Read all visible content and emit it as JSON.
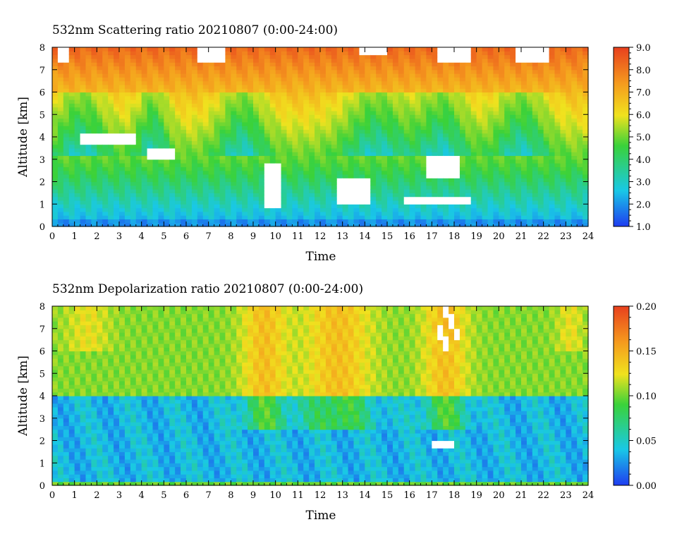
{
  "chart_data": [
    {
      "type": "heatmap",
      "title": "532nm Scattering ratio  20210807 (0:00-24:00)",
      "xlabel": "Time",
      "ylabel": "Altitude [km]",
      "xlim": [
        0,
        24
      ],
      "ylim": [
        0,
        8
      ],
      "x_ticks": [
        "0",
        "1",
        "2",
        "3",
        "4",
        "5",
        "6",
        "7",
        "8",
        "9",
        "10",
        "11",
        "12",
        "13",
        "14",
        "15",
        "16",
        "17",
        "18",
        "19",
        "20",
        "21",
        "22",
        "23",
        "24"
      ],
      "y_ticks": [
        "0",
        "1",
        "2",
        "3",
        "4",
        "5",
        "6",
        "7",
        "8"
      ],
      "colorbar": {
        "min": 1.0,
        "max": 9.0,
        "ticks": [
          "1.0",
          "2.0",
          "3.0",
          "4.0",
          "5.0",
          "6.0",
          "7.0",
          "8.0",
          "9.0"
        ]
      },
      "colormap": [
        "#1f3cf0",
        "#19c8e6",
        "#3ad23a",
        "#f0e21e",
        "#f59a1e",
        "#e8401e"
      ],
      "cloud_regions_white": true
    },
    {
      "type": "heatmap",
      "title": "532nm Depolarization ratio  20210807 (0:00-24:00)",
      "xlabel": "Time",
      "ylabel": "Altitude [km]",
      "xlim": [
        0,
        24
      ],
      "ylim": [
        0,
        8
      ],
      "x_ticks": [
        "0",
        "1",
        "2",
        "3",
        "4",
        "5",
        "6",
        "7",
        "8",
        "9",
        "10",
        "11",
        "12",
        "13",
        "14",
        "15",
        "16",
        "17",
        "18",
        "19",
        "20",
        "21",
        "22",
        "23",
        "24"
      ],
      "y_ticks": [
        "0",
        "1",
        "2",
        "3",
        "4",
        "5",
        "6",
        "7",
        "8"
      ],
      "colorbar": {
        "min": 0.0,
        "max": 0.2,
        "ticks": [
          "0.00",
          "0.05",
          "0.10",
          "0.15",
          "0.20"
        ]
      },
      "colormap": [
        "#1f3cf0",
        "#19c8e6",
        "#3ad23a",
        "#f0e21e",
        "#f59a1e",
        "#e8401e"
      ],
      "cloud_regions_white": true
    }
  ]
}
